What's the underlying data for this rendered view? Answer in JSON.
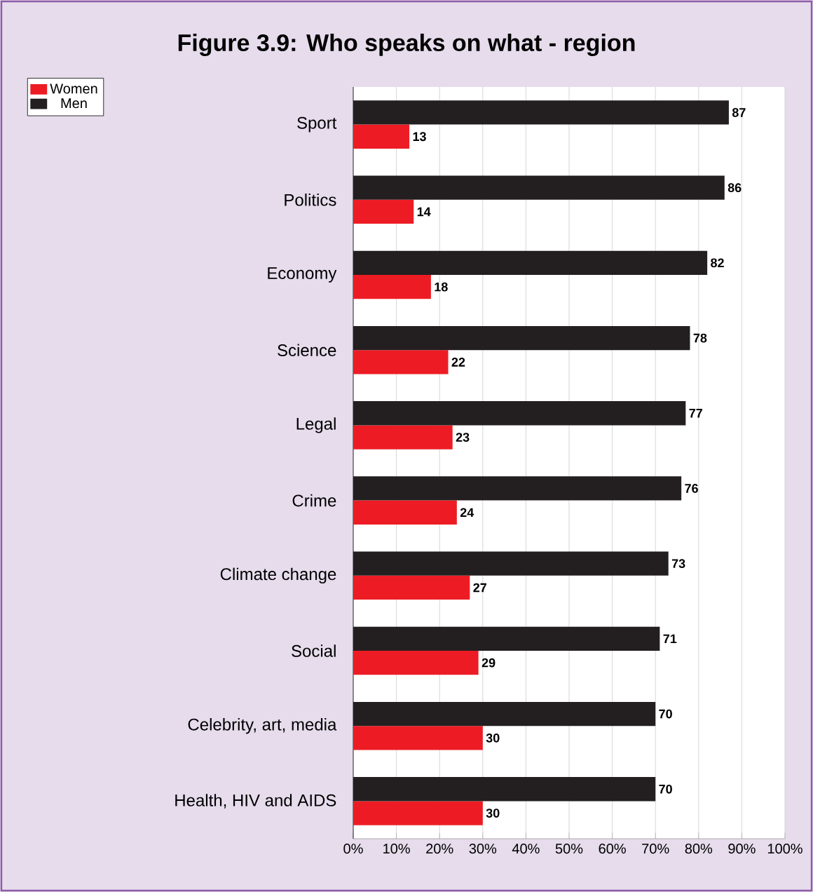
{
  "chart_data": {
    "type": "bar",
    "orientation": "horizontal",
    "title": "Figure 3.9: Who speaks on what - region",
    "categories": [
      "Sport",
      "Politics",
      "Economy",
      "Science",
      "Legal",
      "Crime",
      "Climate change",
      "Social",
      "Celebrity, art, media",
      "Health, HIV and AIDS"
    ],
    "series": [
      {
        "name": "Women",
        "color": "#ed1c24",
        "values": [
          13,
          14,
          18,
          22,
          23,
          24,
          27,
          29,
          30,
          30
        ]
      },
      {
        "name": "Men",
        "color": "#231f20",
        "values": [
          87,
          86,
          82,
          78,
          77,
          76,
          73,
          71,
          70,
          70
        ]
      }
    ],
    "xlim": [
      0,
      100
    ],
    "xticks": [
      {
        "value": 0,
        "label": "0%"
      },
      {
        "value": 10,
        "label": "10%"
      },
      {
        "value": 20,
        "label": "20%"
      },
      {
        "value": 30,
        "label": "30%"
      },
      {
        "value": 40,
        "label": "40%"
      },
      {
        "value": 50,
        "label": "50%"
      },
      {
        "value": 60,
        "label": "60%"
      },
      {
        "value": 70,
        "label": "70%"
      },
      {
        "value": 80,
        "label": "80%"
      },
      {
        "value": 90,
        "label": "90%"
      },
      {
        "value": 100,
        "label": "100%"
      }
    ],
    "grid": "x",
    "legend": "top left",
    "data_labels": true
  }
}
